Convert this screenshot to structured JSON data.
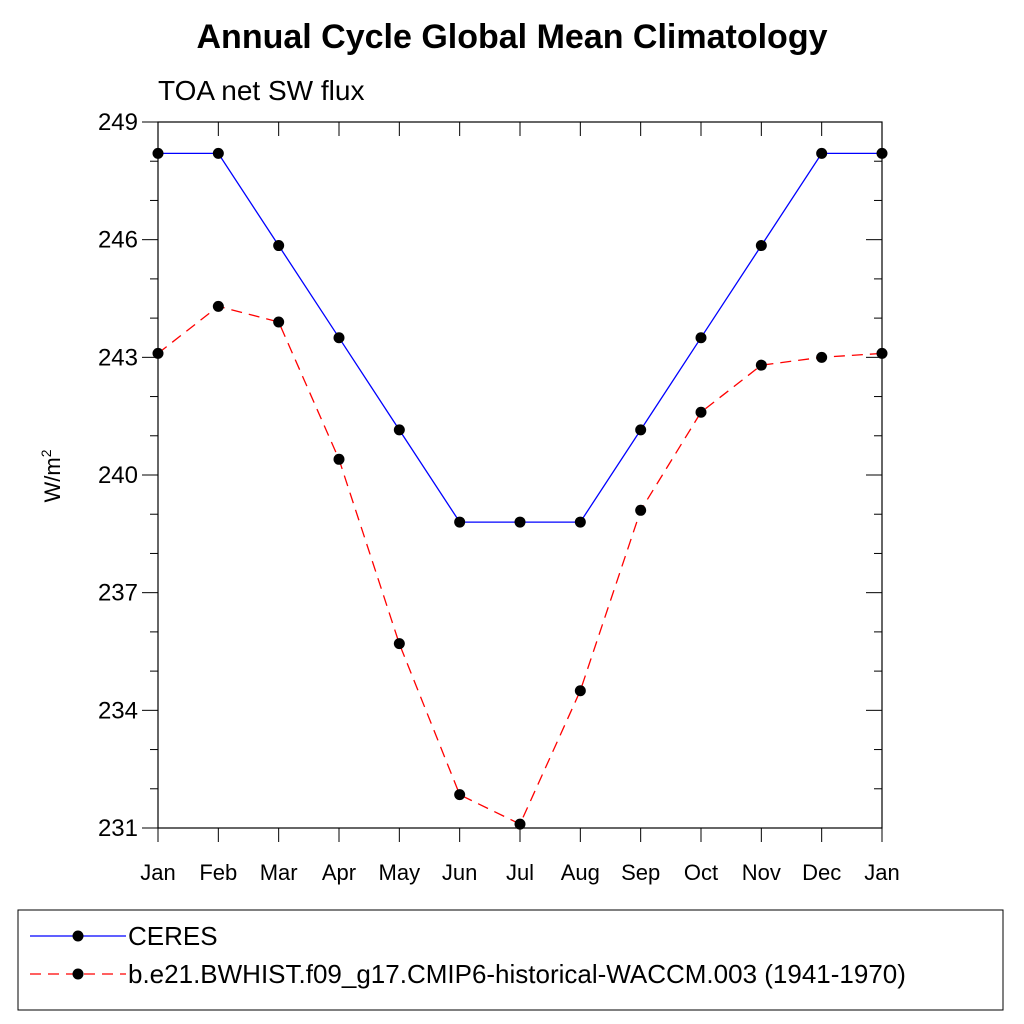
{
  "chart_data": {
    "type": "line",
    "title": "Annual Cycle Global Mean Climatology",
    "subtitle": "TOA net SW flux",
    "ylabel": "W/m",
    "ylabel_sup": "2",
    "categories": [
      "Jan",
      "Feb",
      "Mar",
      "Apr",
      "May",
      "Jun",
      "Jul",
      "Aug",
      "Sep",
      "Oct",
      "Nov",
      "Dec",
      "Jan"
    ],
    "ylim": [
      231,
      249
    ],
    "yticks": [
      231,
      234,
      237,
      240,
      243,
      246,
      249
    ],
    "series": [
      {
        "name": "CERES",
        "color": "#0000ff",
        "line_style": "solid",
        "values": [
          248.2,
          248.2,
          245.85,
          243.5,
          241.15,
          238.8,
          238.8,
          238.8,
          241.15,
          243.5,
          245.85,
          248.2,
          248.2
        ]
      },
      {
        "name": "b.e21.BWHIST.f09_g17.CMIP6-historical-WACCM.003 (1941-1970)",
        "color": "#ff0000",
        "line_style": "dashed",
        "values": [
          243.1,
          244.3,
          243.9,
          240.4,
          235.7,
          231.85,
          231.1,
          234.5,
          239.1,
          241.6,
          242.8,
          243.0,
          243.1
        ]
      }
    ],
    "marker_color": "#000000",
    "legend_position": "bottom"
  }
}
